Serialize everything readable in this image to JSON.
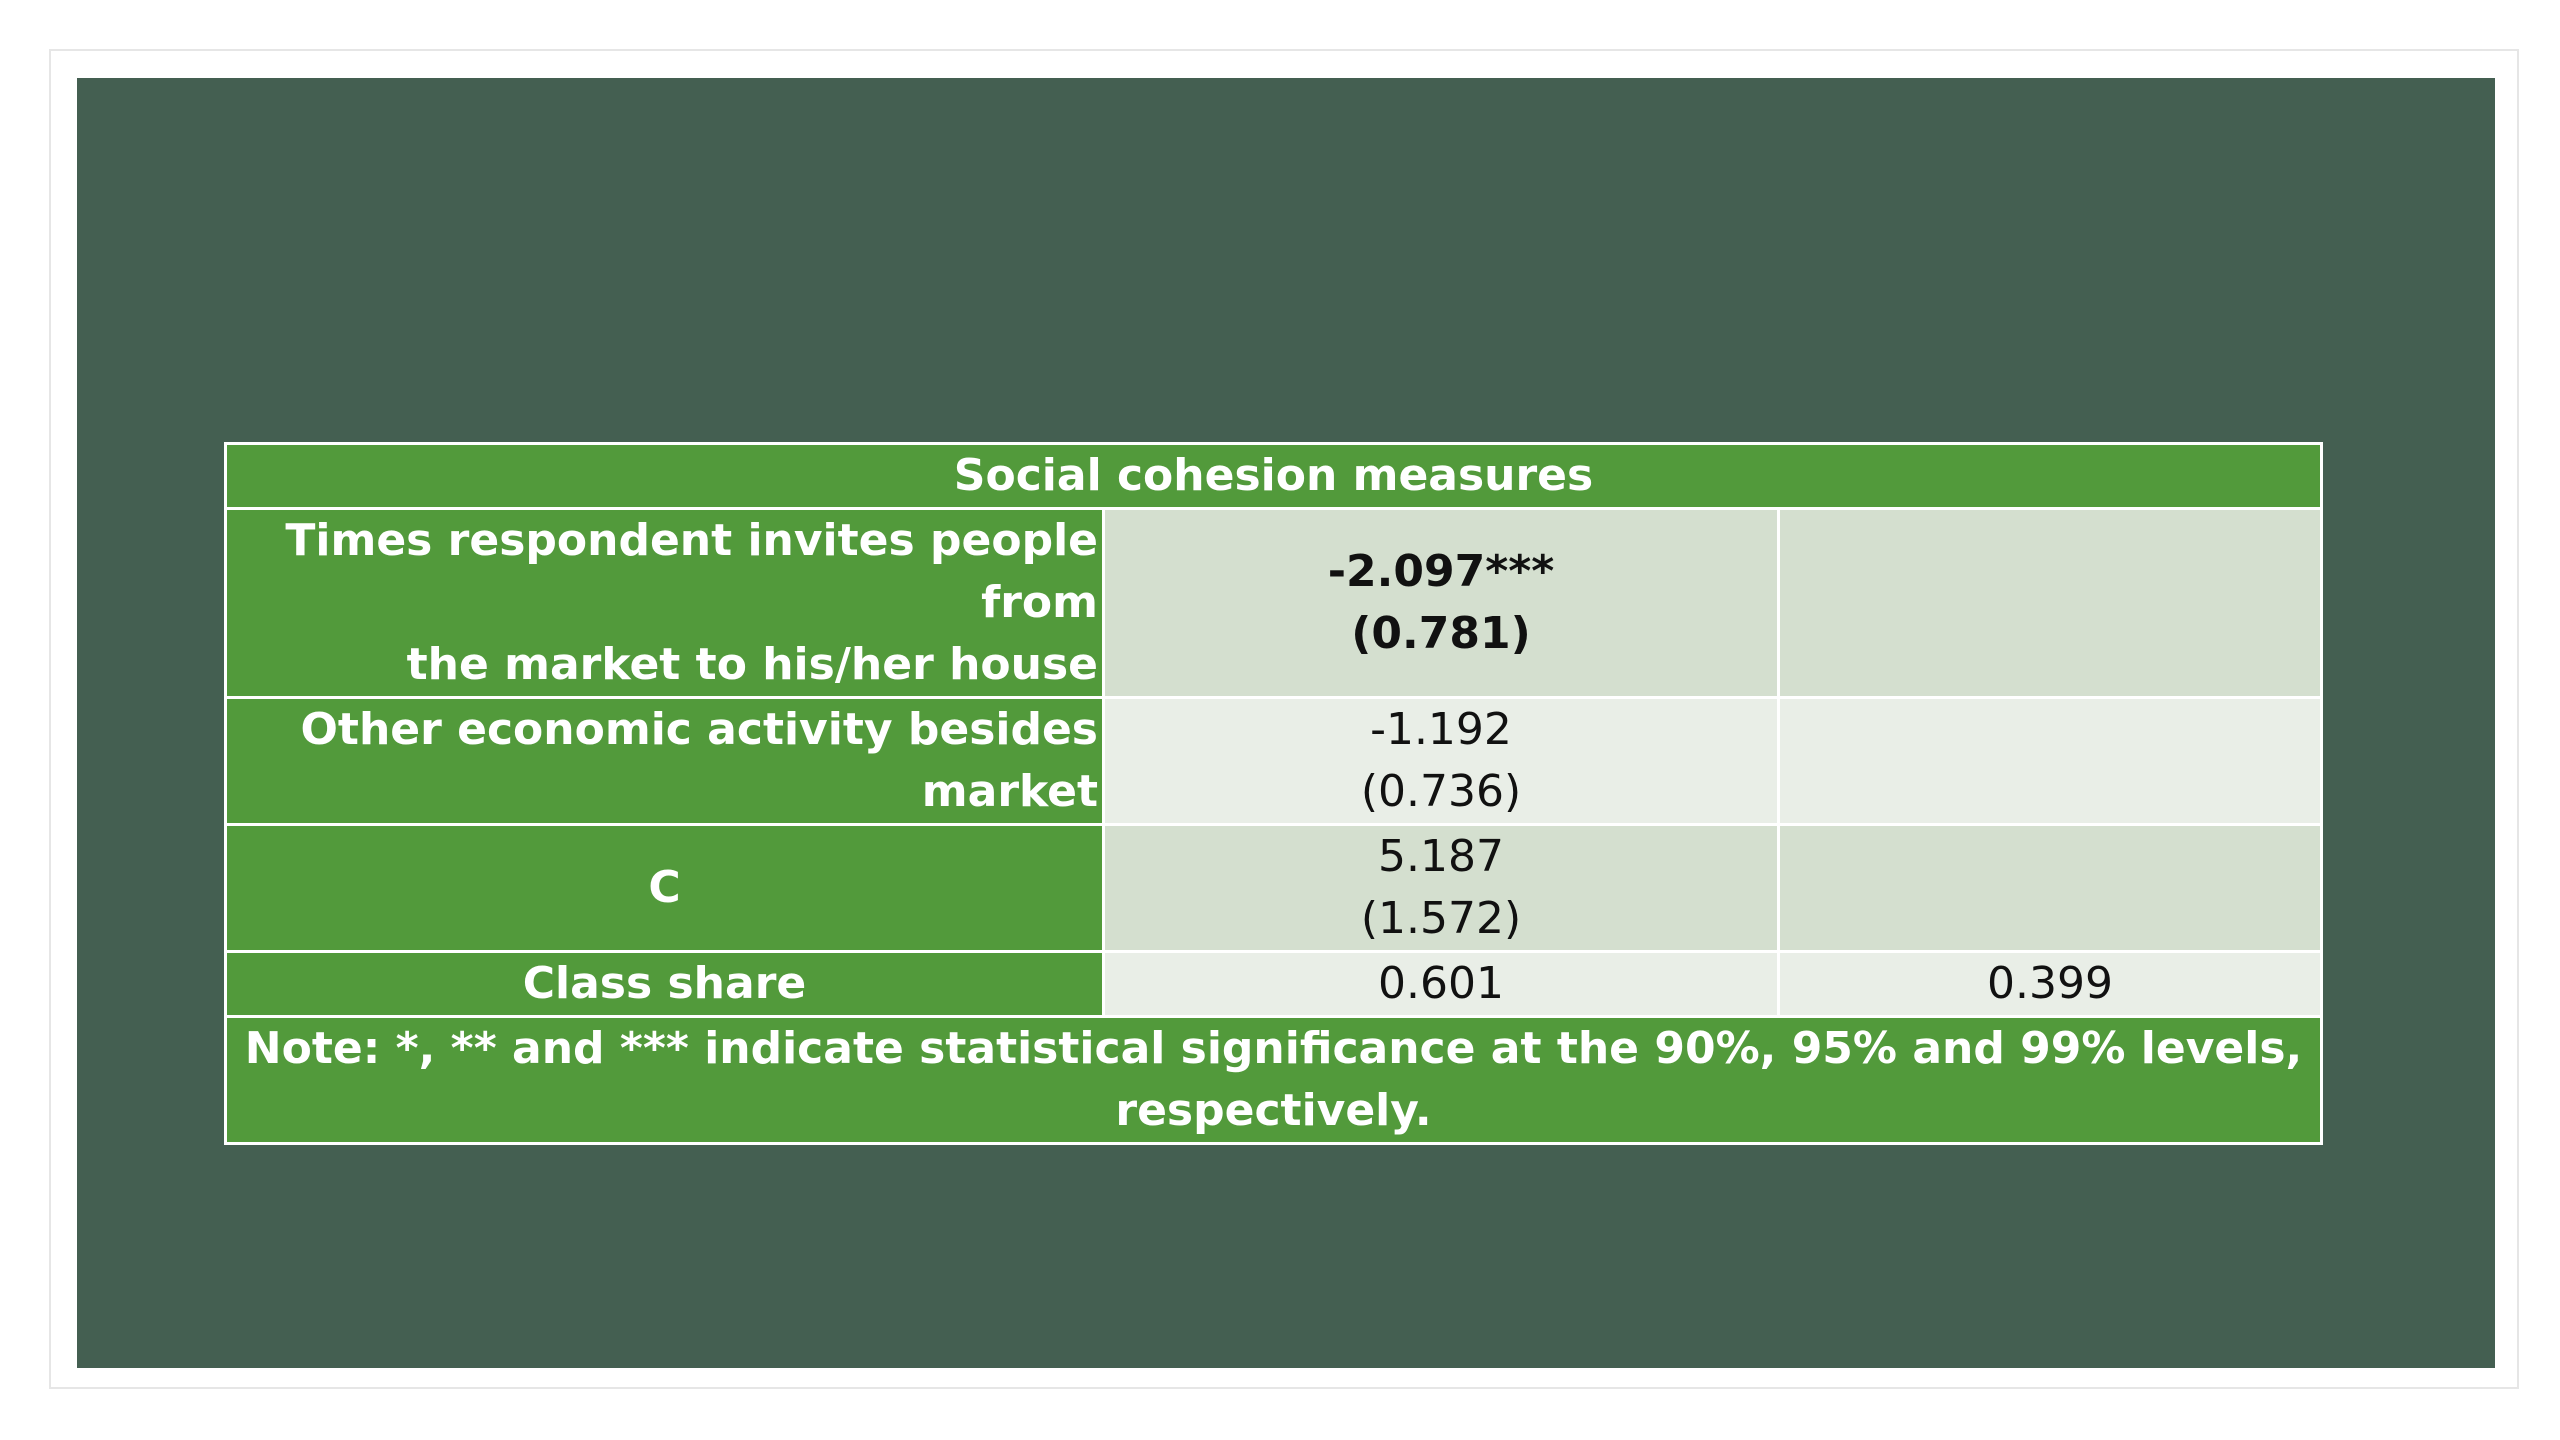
{
  "table": {
    "title": "Social cohesion measures",
    "rows": [
      {
        "label_line1": "Times respondent invites people from",
        "label_line2": "the market to his/her house",
        "coef": "-2.097***",
        "se": "(0.781)",
        "col2": ""
      },
      {
        "label_line1": "Other economic activity besides",
        "label_line2": "market",
        "coef": "-1.192",
        "se": "(0.736)",
        "col2": ""
      },
      {
        "label": "C",
        "coef": "5.187",
        "se": "(1.572)",
        "col2": ""
      }
    ],
    "class_share": {
      "label": "Class share",
      "col1": "0.601",
      "col2": "0.399"
    },
    "note_line1": "Note: *, ** and *** indicate statistical significance at the 90%, 95% and 99% levels,",
    "note_line2": "respectively."
  },
  "colors": {
    "slide_background": "#445f51",
    "header_green": "#529a3b",
    "band_dark": "#d4dfcf",
    "band_light": "#e9eee7"
  }
}
